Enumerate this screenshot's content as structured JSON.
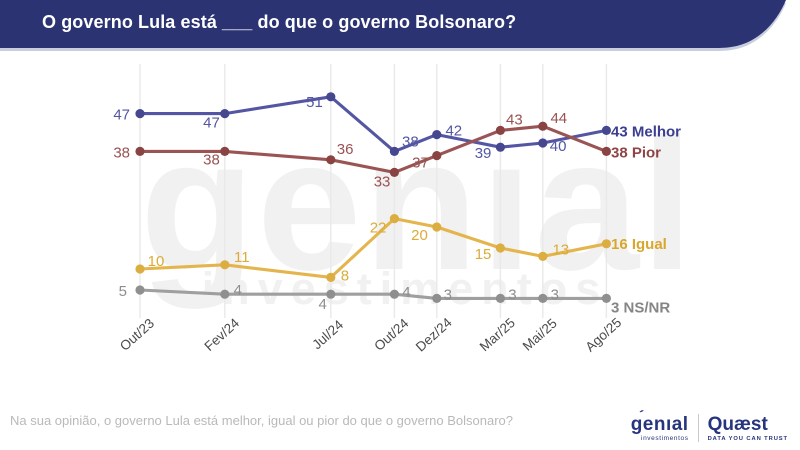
{
  "header": {
    "title": "O governo Lula está ___ do que o governo Bolsonaro?",
    "bg_color": "#2b3372",
    "shadow_color": "#c9cede"
  },
  "watermark": {
    "line1": "genıal",
    "line2": "investimentos"
  },
  "chart_data": {
    "type": "line",
    "title": "O governo Lula está ___ do que o governo Bolsonaro?",
    "categories": [
      "Out/23",
      "Fev/24",
      "Jul/24",
      "Out/24",
      "Dez/24",
      "Mar/25",
      "Mai/25",
      "Ago/25"
    ],
    "month_offsets": [
      0,
      4,
      9,
      12,
      14,
      17,
      19,
      22
    ],
    "ylim": [
      0,
      58
    ],
    "grid": "vertical-only",
    "gridline_color": "#e9e9e9",
    "legend_position": "end-of-line-labels",
    "series": [
      {
        "name": "Melhor",
        "color": "#5456a3",
        "dot_color": "#45478f",
        "label_color": "#5356a3",
        "end_label": "43 Melhor",
        "end_color": "#3c3e92",
        "end_dy": 6,
        "values": [
          47,
          47,
          51,
          38,
          42,
          39,
          40,
          43
        ],
        "label_offsets": [
          [
            -10,
            6,
            "end"
          ],
          [
            -5,
            14,
            "end"
          ],
          [
            -8,
            10,
            "end"
          ],
          [
            16,
            -5,
            "middle"
          ],
          [
            17,
            1,
            "middle"
          ],
          [
            -9,
            11,
            "end"
          ],
          [
            7,
            8,
            "start"
          ],
          null
        ]
      },
      {
        "name": "Pior",
        "color": "#9a5454",
        "dot_color": "#8a4343",
        "label_color": "#9a5252",
        "end_label": "38 Pior",
        "end_color": "#8f4545",
        "end_dy": 6,
        "values": [
          38,
          38,
          36,
          33,
          37,
          43,
          44,
          38
        ],
        "label_offsets": [
          [
            -10,
            6,
            "end"
          ],
          [
            -5,
            13,
            "end"
          ],
          [
            6,
            -6,
            "start"
          ],
          [
            -4,
            14,
            "end"
          ],
          [
            -8,
            12,
            "end"
          ],
          [
            14,
            -6,
            "middle"
          ],
          [
            16,
            -3,
            "middle"
          ],
          null
        ]
      },
      {
        "name": "Igual",
        "color": "#e3b54c",
        "dot_color": "#dcad41",
        "label_color": "#dcab38",
        "end_label": "16 Igual",
        "end_color": "#d9a62e",
        "end_dy": 5,
        "values": [
          10,
          11,
          8,
          22,
          20,
          15,
          13,
          16
        ],
        "label_offsets": [
          [
            16,
            -3,
            "middle"
          ],
          [
            17,
            -3,
            "middle"
          ],
          [
            10,
            3,
            "start"
          ],
          [
            -8,
            14,
            "end"
          ],
          [
            -9,
            13,
            "end"
          ],
          [
            -9,
            11,
            "end"
          ],
          [
            18,
            -2,
            "middle"
          ],
          null
        ]
      },
      {
        "name": "NS/NR",
        "color": "#9f9f9f",
        "dot_color": "#8f8f8f",
        "label_color": "#8e8e8e",
        "end_label": "3 NS/NR",
        "end_color": "#858585",
        "end_dy": 14,
        "values": [
          5,
          4,
          4,
          4,
          3,
          3,
          3,
          3
        ],
        "label_offsets": [
          [
            -13,
            6,
            "end"
          ],
          [
            13,
            1,
            "middle"
          ],
          [
            -4,
            15,
            "end"
          ],
          [
            12,
            3,
            "middle"
          ],
          [
            11,
            1,
            "middle"
          ],
          [
            12,
            1,
            "middle"
          ],
          [
            12,
            1,
            "middle"
          ],
          null
        ]
      }
    ]
  },
  "footer": {
    "note": "Na sua opinião, o governo Lula está melhor, igual ou pior do que o governo Bolsonaro?",
    "logos": {
      "genial": {
        "word": "genıal",
        "accent": "´",
        "sub": "investimentos"
      },
      "quaest": {
        "word": "Quæst",
        "sub": "DATA YOU CAN TRUST"
      }
    }
  }
}
